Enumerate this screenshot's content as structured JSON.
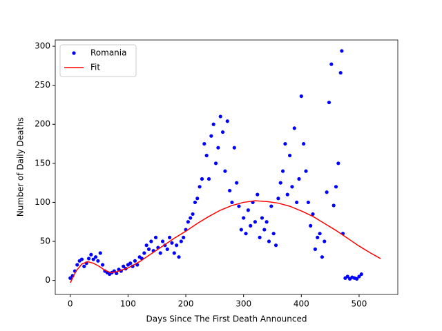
{
  "chart_data": {
    "type": "scatter",
    "xlabel": "Days Since The First Death Announced",
    "ylabel": "Number of Daily Deaths",
    "xlim": [
      -26,
      567
    ],
    "ylim": [
      -18,
      308
    ],
    "xticks": [
      0,
      100,
      200,
      300,
      400,
      500
    ],
    "yticks": [
      0,
      50,
      100,
      150,
      200,
      250,
      300
    ],
    "legend": "upper left",
    "series": [
      {
        "name": "Romania",
        "color": "#0000ff",
        "kind": "points",
        "x": [
          0,
          4,
          8,
          12,
          16,
          20,
          24,
          28,
          32,
          36,
          40,
          44,
          48,
          52,
          56,
          60,
          64,
          68,
          72,
          76,
          80,
          84,
          88,
          92,
          96,
          100,
          104,
          108,
          112,
          116,
          120,
          124,
          128,
          132,
          136,
          140,
          144,
          148,
          152,
          156,
          160,
          164,
          168,
          172,
          176,
          180,
          184,
          188,
          192,
          196,
          200,
          204,
          208,
          212,
          216,
          220,
          224,
          228,
          232,
          236,
          240,
          244,
          248,
          252,
          256,
          260,
          264,
          268,
          272,
          276,
          280,
          284,
          288,
          292,
          296,
          300,
          304,
          308,
          312,
          316,
          320,
          324,
          328,
          332,
          336,
          340,
          344,
          348,
          352,
          356,
          360,
          364,
          368,
          372,
          376,
          380,
          384,
          388,
          392,
          396,
          400,
          404,
          408,
          412,
          416,
          420,
          424,
          428,
          432,
          436,
          440,
          444,
          448,
          452,
          456,
          460,
          464,
          468,
          470,
          472,
          476,
          480,
          484,
          488,
          492,
          496,
          500,
          504
        ],
        "values": [
          3,
          6,
          12,
          20,
          25,
          27,
          18,
          22,
          28,
          33,
          27,
          30,
          25,
          35,
          20,
          12,
          10,
          8,
          10,
          12,
          9,
          14,
          12,
          18,
          15,
          20,
          22,
          18,
          25,
          20,
          30,
          28,
          35,
          45,
          40,
          50,
          38,
          55,
          42,
          35,
          50,
          45,
          40,
          55,
          48,
          35,
          45,
          30,
          50,
          55,
          65,
          75,
          80,
          85,
          100,
          105,
          120,
          130,
          175,
          160,
          130,
          185,
          200,
          150,
          170,
          210,
          190,
          140,
          204,
          115,
          100,
          170,
          125,
          95,
          65,
          80,
          60,
          90,
          70,
          100,
          75,
          110,
          55,
          80,
          65,
          75,
          50,
          95,
          60,
          45,
          105,
          125,
          140,
          175,
          110,
          160,
          120,
          195,
          100,
          130,
          236,
          175,
          140,
          100,
          70,
          85,
          40,
          55,
          60,
          30,
          50,
          113,
          228,
          277,
          96,
          120,
          150,
          266,
          294,
          60,
          3,
          5,
          2,
          4,
          3,
          2,
          5,
          8
        ]
      },
      {
        "name": "Fit",
        "color": "#ff0000",
        "kind": "line",
        "x": [
          0,
          10,
          20,
          30,
          40,
          50,
          60,
          70,
          80,
          100,
          120,
          140,
          160,
          180,
          200,
          220,
          240,
          260,
          280,
          300,
          320,
          340,
          360,
          380,
          400,
          420,
          440,
          460,
          480,
          500,
          520,
          537
        ],
        "values": [
          -3,
          12,
          21,
          24,
          22,
          18,
          13,
          10,
          11,
          16,
          24,
          34,
          44,
          54,
          63,
          73,
          82,
          90,
          96,
          100,
          102,
          101,
          99,
          95,
          89,
          82,
          73,
          64,
          54,
          44,
          35,
          28
        ]
      }
    ]
  }
}
